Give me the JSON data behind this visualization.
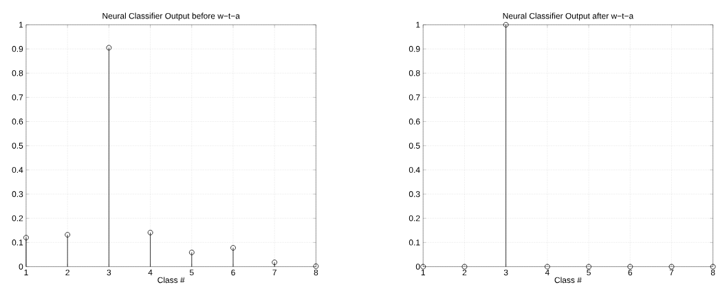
{
  "chart_data": [
    {
      "type": "lollipop",
      "title": "Neural Classifier Output before w−t−a",
      "xlabel": "Class #",
      "x": [
        1,
        2,
        3,
        4,
        5,
        6,
        7,
        8
      ],
      "values": [
        0.12,
        0.132,
        0.905,
        0.141,
        0.059,
        0.078,
        0.018,
        0.002
      ],
      "color": "#000000",
      "xlim": [
        1,
        8
      ],
      "ylim": [
        0,
        1
      ],
      "xticks": [
        1,
        2,
        3,
        4,
        5,
        6,
        7,
        8
      ],
      "yticks": [
        0,
        0.1,
        0.2,
        0.3,
        0.4,
        0.5,
        0.6,
        0.7,
        0.8,
        0.9,
        1
      ],
      "grid": true,
      "marker": "circle"
    },
    {
      "type": "lollipop",
      "title": "Neural Classifier Output after w−t−a",
      "xlabel": "Class #",
      "x": [
        1,
        2,
        3,
        4,
        5,
        6,
        7,
        8
      ],
      "values": [
        0,
        0,
        1,
        0,
        0,
        0,
        0,
        0
      ],
      "color": "#000000",
      "xlim": [
        1,
        8
      ],
      "ylim": [
        0,
        1
      ],
      "xticks": [
        1,
        2,
        3,
        4,
        5,
        6,
        7,
        8
      ],
      "yticks": [
        0,
        0.1,
        0.2,
        0.3,
        0.4,
        0.5,
        0.6,
        0.7,
        0.8,
        0.9,
        1
      ],
      "grid": true,
      "marker": "circle"
    }
  ]
}
